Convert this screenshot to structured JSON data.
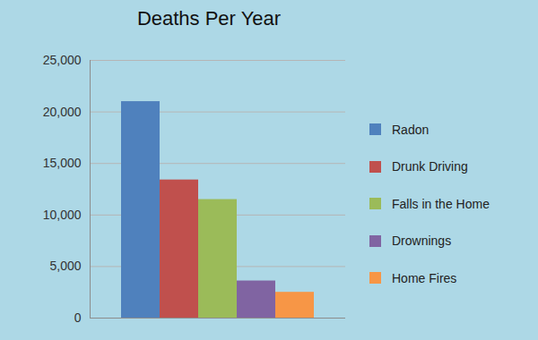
{
  "chart_data": {
    "type": "bar",
    "title": "Deaths Per Year",
    "categories": [
      "Radon",
      "Drunk Driving",
      "Falls in the Home",
      "Drownings",
      "Home Fires"
    ],
    "values": [
      21000,
      13400,
      11500,
      3600,
      2500
    ],
    "colors": [
      "#4f81bd",
      "#c0504d",
      "#9bbb59",
      "#8064a2",
      "#f79646"
    ],
    "ylim": [
      0,
      25000
    ],
    "yticks": [
      0,
      {
        "value": 5000,
        "label": "5,000"
      },
      {
        "value": 10000,
        "label": "10,000"
      },
      {
        "value": 15000,
        "label": "15,000"
      },
      {
        "value": 20000,
        "label": "20,000"
      },
      {
        "value": 25000,
        "label": "25,000"
      }
    ],
    "grid": true,
    "legend": "right",
    "tick_labels": "y"
  }
}
